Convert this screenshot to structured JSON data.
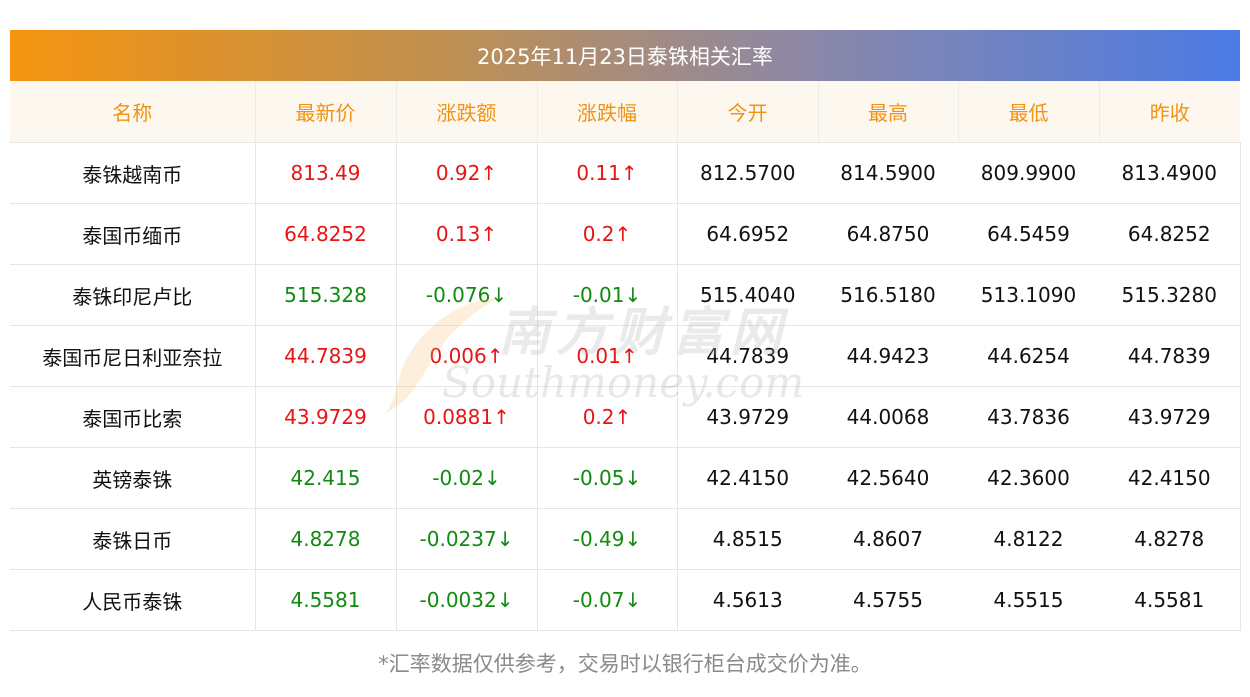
{
  "title": "2025年11月23日泰铢相关汇率",
  "table": {
    "headers": [
      "名称",
      "最新价",
      "涨跌额",
      "涨跌幅",
      "今开",
      "最高",
      "最低",
      "昨收"
    ],
    "rows": [
      {
        "name": "泰铢越南币",
        "latest": "813.49",
        "change": "0.92↑",
        "pct": "0.11↑",
        "open": "812.5700",
        "high": "814.5900",
        "low": "809.9900",
        "prev": "813.4900",
        "direction": "up"
      },
      {
        "name": "泰国币缅币",
        "latest": "64.8252",
        "change": "0.13↑",
        "pct": "0.2↑",
        "open": "64.6952",
        "high": "64.8750",
        "low": "64.5459",
        "prev": "64.8252",
        "direction": "up"
      },
      {
        "name": "泰铢印尼卢比",
        "latest": "515.328",
        "change": "-0.076↓",
        "pct": "-0.01↓",
        "open": "515.4040",
        "high": "516.5180",
        "low": "513.1090",
        "prev": "515.3280",
        "direction": "down"
      },
      {
        "name": "泰国币尼日利亚奈拉",
        "latest": "44.7839",
        "change": "0.006↑",
        "pct": "0.01↑",
        "open": "44.7839",
        "high": "44.9423",
        "low": "44.6254",
        "prev": "44.7839",
        "direction": "up"
      },
      {
        "name": "泰国币比索",
        "latest": "43.9729",
        "change": "0.0881↑",
        "pct": "0.2↑",
        "open": "43.9729",
        "high": "44.0068",
        "low": "43.7836",
        "prev": "43.9729",
        "direction": "up"
      },
      {
        "name": "英镑泰铢",
        "latest": "42.415",
        "change": "-0.02↓",
        "pct": "-0.05↓",
        "open": "42.4150",
        "high": "42.5640",
        "low": "42.3600",
        "prev": "42.4150",
        "direction": "down"
      },
      {
        "name": "泰铢日币",
        "latest": "4.8278",
        "change": "-0.0237↓",
        "pct": "-0.49↓",
        "open": "4.8515",
        "high": "4.8607",
        "low": "4.8122",
        "prev": "4.8278",
        "direction": "down"
      },
      {
        "name": "人民币泰铢",
        "latest": "4.5581",
        "change": "-0.0032↓",
        "pct": "-0.07↓",
        "open": "4.5613",
        "high": "4.5755",
        "low": "4.5515",
        "prev": "4.5581",
        "direction": "down"
      }
    ]
  },
  "footnote": "*汇率数据仅供参考，交易时以银行柜台成交价为准。",
  "watermark": {
    "cn": "南方财富网",
    "en": "Southmoney.com"
  },
  "colors": {
    "up": "#e81414",
    "down": "#128a12",
    "header_text": "#f19212",
    "title_gradient_start": "#f5940f",
    "title_gradient_end": "#4b7be5"
  }
}
